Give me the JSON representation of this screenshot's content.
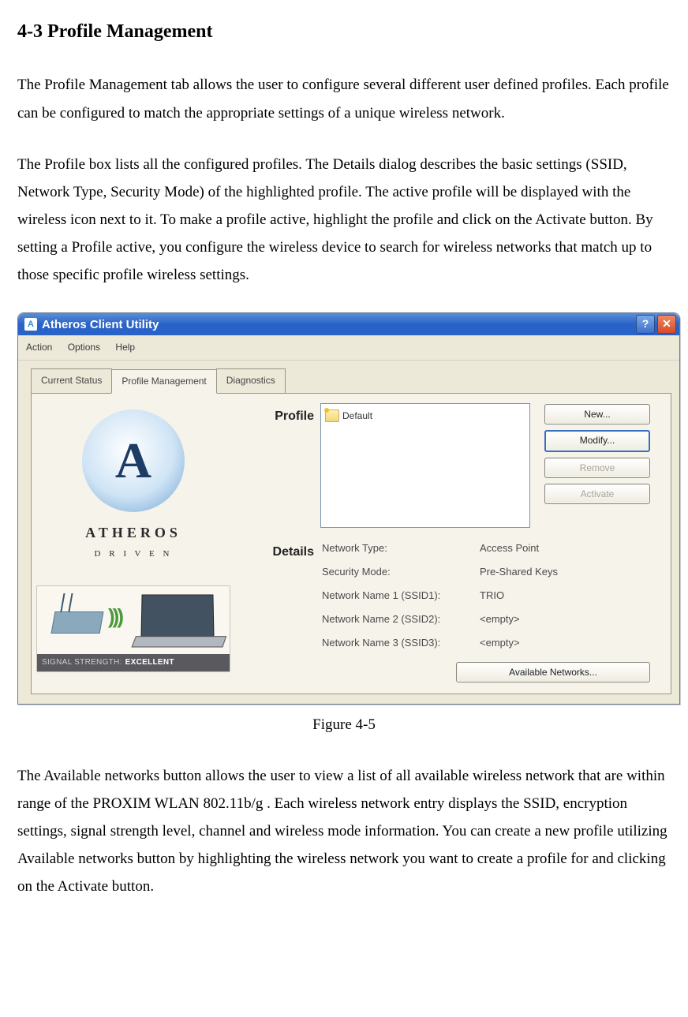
{
  "doc": {
    "section_heading": "4-3 Profile Management",
    "para1": "The Profile Management tab allows the user to configure several different user defined profiles.  Each profile can be configured to match the appropriate settings of a unique wireless network.",
    "para2": "The Profile box lists all the configured profiles.  The Details dialog describes the basic settings (SSID, Network Type, Security Mode) of the highlighted profile.  The active profile will be displayed with the wireless icon next to it.  To make a profile active, highlight the profile and click on the Activate button.  By setting a Profile active, you configure the wireless device to search for wireless networks that match up to those specific profile wireless settings.",
    "figure_caption": "Figure 4-5",
    "para3": "The Available networks button allows the user to view a list of all available wireless network that are within range of the PROXIM WLAN 802.11b/g .  Each wireless network entry displays the SSID, encryption settings, signal strength level, channel and wireless mode information.  You can create a new profile utilizing Available networks button by highlighting the wireless network you want to create a profile for and clicking on the Activate button."
  },
  "window": {
    "title": "Atheros Client Utility",
    "menus": {
      "action": "Action",
      "options": "Options",
      "help": "Help"
    },
    "tabs": {
      "current": "Current Status",
      "profile": "Profile Management",
      "diag": "Diagnostics"
    },
    "logo": {
      "letter": "A",
      "line1": "ATHEROS",
      "line2": "D R I V E N"
    },
    "signal": {
      "label": "SIGNAL STRENGTH:",
      "value": "EXCELLENT"
    },
    "section_labels": {
      "profile": "Profile",
      "details": "Details"
    },
    "profiles": [
      {
        "name": "Default"
      }
    ],
    "buttons": {
      "new": "New...",
      "modify": "Modify...",
      "remove": "Remove",
      "activate": "Activate",
      "available": "Available Networks..."
    },
    "details": {
      "network_type_label": "Network Type:",
      "network_type_value": "Access Point",
      "security_mode_label": "Security Mode:",
      "security_mode_value": "Pre-Shared Keys",
      "ssid1_label": "Network Name 1 (SSID1):",
      "ssid1_value": "TRIO",
      "ssid2_label": "Network Name 2 (SSID2):",
      "ssid2_value": "<empty>",
      "ssid3_label": "Network Name 3 (SSID3):",
      "ssid3_value": "<empty>"
    }
  }
}
